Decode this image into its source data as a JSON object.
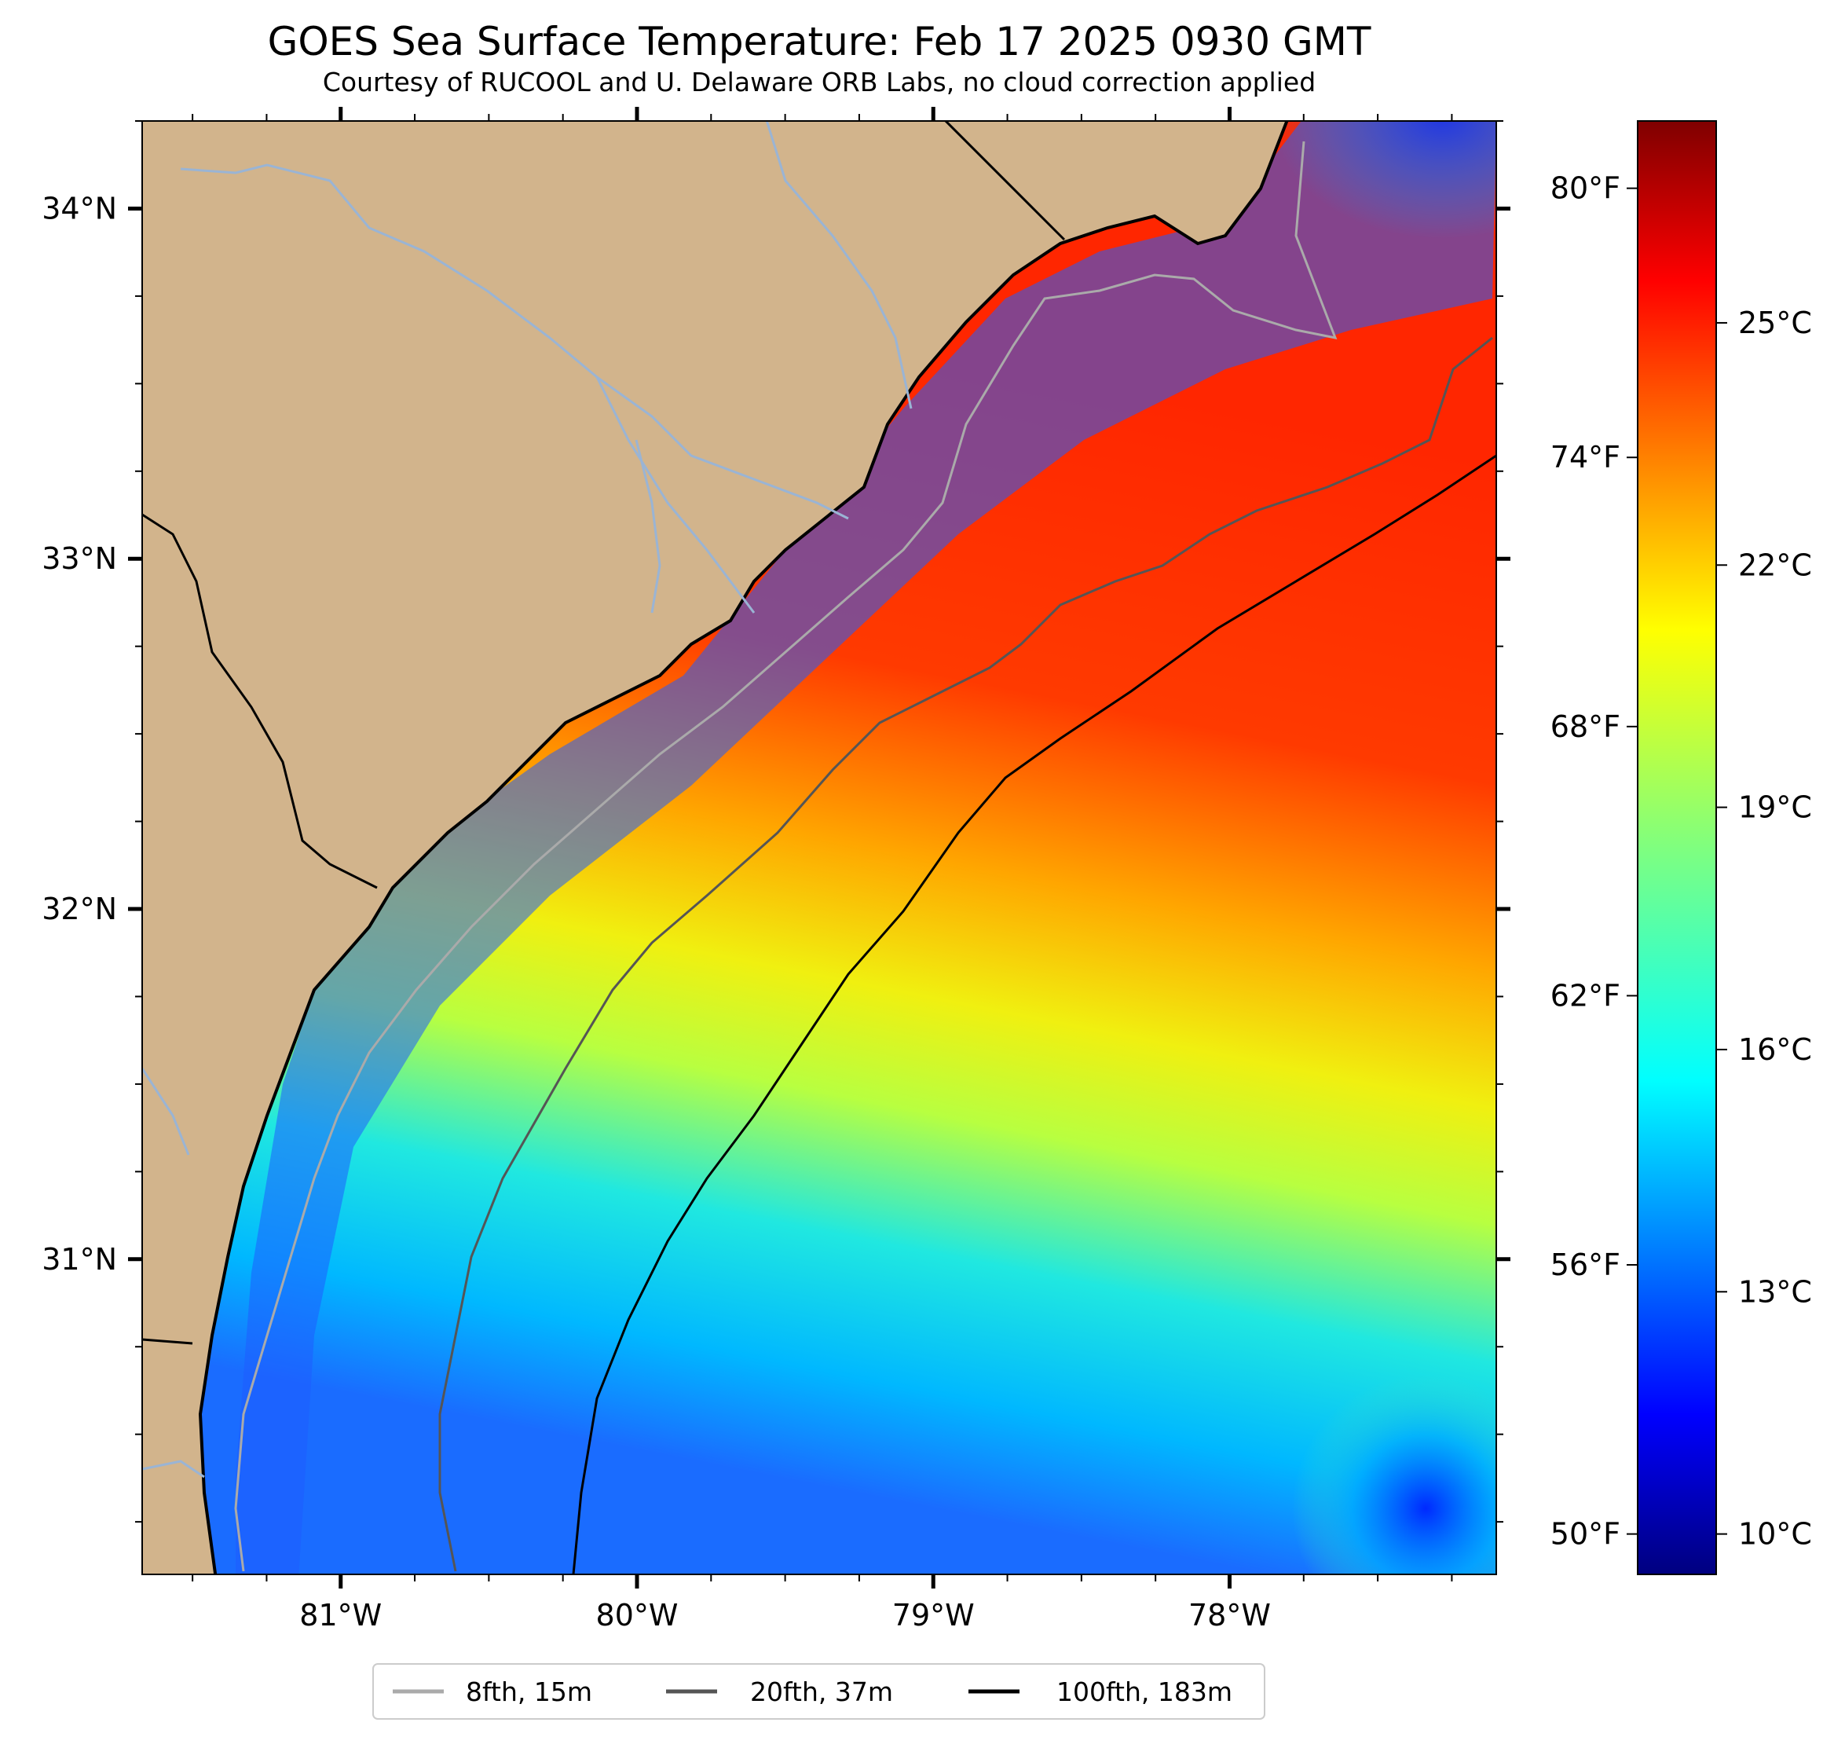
{
  "title": "GOES Sea Surface Temperature: Feb 17 2025 0930 GMT",
  "subtitle": "Courtesy of RUCOOL and U. Delaware ORB Labs, no cloud correction applied",
  "map": {
    "type": "sea-surface-temperature",
    "longitude_range": [
      -81.67,
      -77.1
    ],
    "latitude_range": [
      30.1,
      34.25
    ],
    "longitude_ticks": [
      {
        "value": -81,
        "label": "81°W"
      },
      {
        "value": -80,
        "label": "80°W"
      },
      {
        "value": -79,
        "label": "79°W"
      },
      {
        "value": -78,
        "label": "78°W"
      }
    ],
    "latitude_ticks": [
      {
        "value": 34,
        "label": "34°N"
      },
      {
        "value": 33,
        "label": "33°N"
      },
      {
        "value": 32,
        "label": "32°N"
      },
      {
        "value": 31,
        "label": "31°N"
      }
    ],
    "colors": {
      "land": "#d2b48c",
      "rivers": "#9ab4d4",
      "coastline": "#000000",
      "state_border": "#000000"
    }
  },
  "colorbar": {
    "colormap": "jet",
    "range_celsius": [
      9.5,
      27.5
    ],
    "celsius_ticks": [
      {
        "value": 10,
        "label": "10°C"
      },
      {
        "value": 13,
        "label": "13°C"
      },
      {
        "value": 16,
        "label": "16°C"
      },
      {
        "value": 19,
        "label": "19°C"
      },
      {
        "value": 22,
        "label": "22°C"
      },
      {
        "value": 25,
        "label": "25°C"
      }
    ],
    "fahrenheit_ticks": [
      {
        "value": 50,
        "label": "50°F"
      },
      {
        "value": 56,
        "label": "56°F"
      },
      {
        "value": 62,
        "label": "62°F"
      },
      {
        "value": 68,
        "label": "68°F"
      },
      {
        "value": 74,
        "label": "74°F"
      },
      {
        "value": 80,
        "label": "80°F"
      }
    ]
  },
  "legend": [
    {
      "label": "8fth, 15m",
      "color": "#aaaaaa"
    },
    {
      "label": "20fth, 37m",
      "color": "#555555"
    },
    {
      "label": "100fth, 183m",
      "color": "#000000"
    }
  ]
}
